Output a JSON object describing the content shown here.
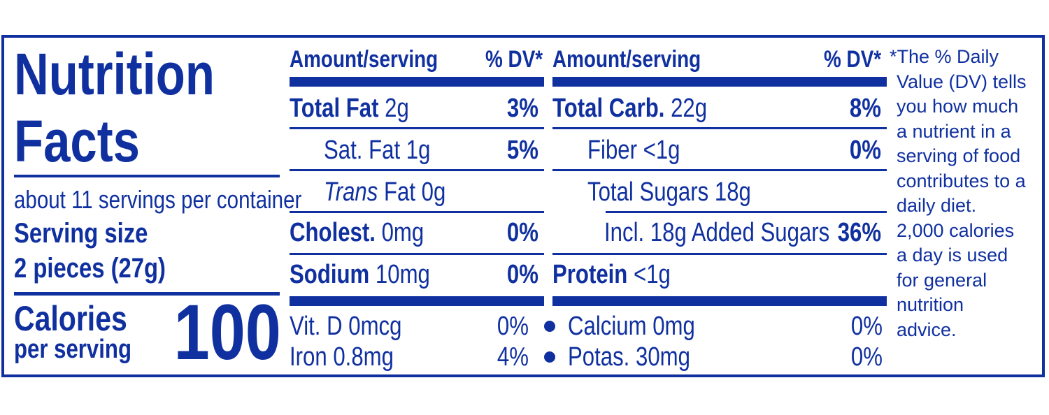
{
  "colors": {
    "primary": "#1030a0",
    "background": "#ffffff"
  },
  "title": {
    "line1": "Nutrition",
    "line2": "Facts"
  },
  "servings_per_container": "about 11 servings per container",
  "serving_size": {
    "label": "Serving size",
    "value": "2 pieces (27g)"
  },
  "calories": {
    "label_line1": "Calories",
    "label_line2": "per serving",
    "value": "100"
  },
  "headers": {
    "amount": "Amount/serving",
    "dv": "% DV*"
  },
  "left_column": {
    "total_fat": {
      "label": "Total Fat",
      "amount": " 2g",
      "dv": "3%"
    },
    "sat_fat": {
      "text": "Sat. Fat 1g",
      "dv": "5%"
    },
    "trans_fat": {
      "label": "Trans",
      "amount": " Fat 0g"
    },
    "cholest": {
      "label": "Cholest.",
      "amount": " 0mg",
      "dv": "0%"
    },
    "sodium": {
      "label": "Sodium",
      "amount": " 10mg",
      "dv": "0%"
    }
  },
  "right_column": {
    "total_carb": {
      "label": "Total Carb.",
      "amount": " 22g",
      "dv": "8%"
    },
    "fiber": {
      "text": "Fiber <1g",
      "dv": "0%"
    },
    "total_sugars": {
      "text": "Total Sugars 18g"
    },
    "added_sugars": {
      "text": "Incl. 18g Added Sugars",
      "dv": "36%"
    },
    "protein": {
      "label": "Protein",
      "amount": " <1g"
    }
  },
  "micronutrients": {
    "vit_d": {
      "label": "Vit. D 0mcg",
      "dv": "0%"
    },
    "iron": {
      "label": "Iron 0.8mg",
      "dv": "4%"
    },
    "calcium": {
      "label": "Calcium 0mg",
      "dv": "0%"
    },
    "potassium": {
      "label": "Potas. 30mg",
      "dv": "0%"
    }
  },
  "footnote": [
    "*The % Daily",
    "Value (DV) tells",
    "you how much",
    "a nutrient in a",
    "serving of food",
    "contributes to a",
    "daily diet.",
    "2,000 calories",
    "a day is used",
    "for general",
    "nutrition",
    "advice."
  ]
}
